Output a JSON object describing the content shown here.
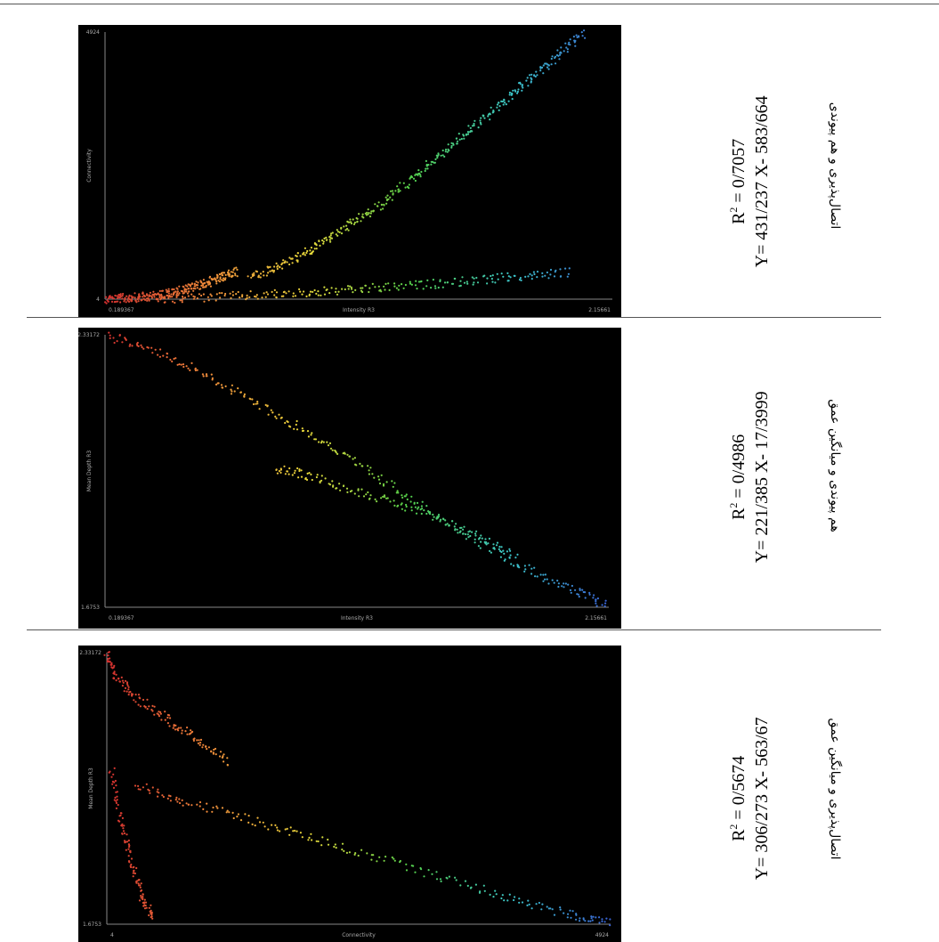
{
  "rows": [
    {
      "equation_r2_prefix": "R",
      "equation_r2_sup": "2",
      "equation_r2_value": " = 0/7057",
      "equation_line": "Y= 431/237 X- 583/664",
      "label_fa": "اتصال‌پذیری و هم پیوندی"
    },
    {
      "equation_r2_prefix": "R",
      "equation_r2_sup": "2",
      "equation_r2_value": " = 0/4986",
      "equation_line": "Y= 221/385 X- 17/3999",
      "label_fa": "هم پیوندی و میانگین عمق"
    },
    {
      "equation_r2_prefix": "R",
      "equation_r2_sup": "2",
      "equation_r2_value": " = 0/5674",
      "equation_line": "Y= 306/273 X- 563/67",
      "label_fa": "اتصال‌پذیری و میانگین عمق"
    }
  ],
  "chart_data": [
    {
      "type": "scatter",
      "xlabel": "Intensity R3",
      "ylabel": "Connectivity",
      "xlim": [
        0.189367,
        2.15661
      ],
      "ylim": [
        4,
        4924
      ],
      "x_tick_labels": [
        "0.189367",
        "2.15661"
      ],
      "y_tick_labels": [
        "4",
        "4924"
      ],
      "series": [
        {
          "values": [
            [
              0.19,
              10
            ],
            [
              0.25,
              20
            ],
            [
              0.3,
              30
            ],
            [
              0.35,
              50
            ],
            [
              0.4,
              80
            ],
            [
              0.45,
              120
            ],
            [
              0.5,
              180
            ],
            [
              0.55,
              250
            ],
            [
              0.6,
              330
            ],
            [
              0.65,
              420
            ],
            [
              0.7,
              520
            ]
          ]
        },
        {
          "values": [
            [
              0.75,
              400
            ],
            [
              0.85,
              600
            ],
            [
              0.95,
              800
            ],
            [
              1.05,
              1100
            ],
            [
              1.15,
              1400
            ],
            [
              1.25,
              1700
            ],
            [
              1.35,
              2100
            ],
            [
              1.45,
              2500
            ],
            [
              1.55,
              2900
            ],
            [
              1.65,
              3300
            ],
            [
              1.75,
              3700
            ],
            [
              1.85,
              4100
            ],
            [
              1.95,
              4500
            ],
            [
              2.05,
              4924
            ]
          ]
        },
        {
          "values": [
            [
              0.4,
              10
            ],
            [
              0.6,
              40
            ],
            [
              0.8,
              80
            ],
            [
              1.0,
              130
            ],
            [
              1.2,
              190
            ],
            [
              1.4,
              260
            ],
            [
              1.6,
              340
            ],
            [
              1.8,
              420
            ],
            [
              2.0,
              500
            ]
          ]
        }
      ],
      "color_scale": [
        "#d32f2f",
        "#ef8a3a",
        "#e8d83a",
        "#55d04a",
        "#3cc6c8",
        "#3a62d6"
      ]
    },
    {
      "type": "scatter",
      "xlabel": "Intensity R3",
      "ylabel": "Mean Depth R3",
      "xlim": [
        0.189367,
        2.15661
      ],
      "ylim": [
        1.6753,
        2.33172
      ],
      "x_tick_labels": [
        "0.189367",
        "2.15661"
      ],
      "y_tick_labels": [
        "1.6753",
        "2.33172"
      ],
      "series": [
        {
          "values": [
            [
              0.2,
              2.33
            ],
            [
              0.4,
              2.29
            ],
            [
              0.6,
              2.23
            ],
            [
              0.8,
              2.16
            ],
            [
              1.0,
              2.09
            ],
            [
              1.2,
              2.01
            ],
            [
              1.4,
              1.93
            ],
            [
              1.6,
              1.85
            ],
            [
              1.8,
              1.78
            ],
            [
              2.0,
              1.72
            ],
            [
              2.15,
              1.68
            ]
          ]
        },
        {
          "values": [
            [
              0.85,
              2.01
            ],
            [
              1.0,
              1.99
            ],
            [
              1.2,
              1.95
            ],
            [
              1.4,
              1.91
            ],
            [
              1.6,
              1.86
            ],
            [
              1.8,
              1.8
            ]
          ]
        }
      ],
      "color_scale": [
        "#d32f2f",
        "#ef8a3a",
        "#e8d83a",
        "#55d04a",
        "#3cc6c8",
        "#3a62d6"
      ]
    },
    {
      "type": "scatter",
      "xlabel": "Connectivity",
      "ylabel": "Mean Depth R3",
      "xlim": [
        4,
        4924
      ],
      "ylim": [
        1.6753,
        2.33172
      ],
      "x_tick_labels": [
        "4",
        "4924"
      ],
      "y_tick_labels": [
        "1.6753",
        "2.33172"
      ],
      "series": [
        {
          "values": [
            [
              4,
              2.33
            ],
            [
              100,
              2.27
            ],
            [
              300,
              2.22
            ],
            [
              600,
              2.17
            ],
            [
              900,
              2.12
            ],
            [
              1200,
              2.06
            ]
          ]
        },
        {
          "values": [
            [
              300,
              2.01
            ],
            [
              800,
              1.97
            ],
            [
              1500,
              1.92
            ],
            [
              2200,
              1.87
            ],
            [
              3000,
              1.81
            ],
            [
              3800,
              1.75
            ],
            [
              4500,
              1.7
            ],
            [
              4924,
              1.68
            ]
          ]
        },
        {
          "values": [
            [
              50,
              2.05
            ],
            [
              150,
              1.92
            ],
            [
              250,
              1.82
            ],
            [
              350,
              1.74
            ],
            [
              450,
              1.69
            ]
          ]
        }
      ],
      "color_scale": [
        "#d32f2f",
        "#ef8a3a",
        "#e8d83a",
        "#55d04a",
        "#3cc6c8",
        "#3a62d6"
      ]
    }
  ]
}
